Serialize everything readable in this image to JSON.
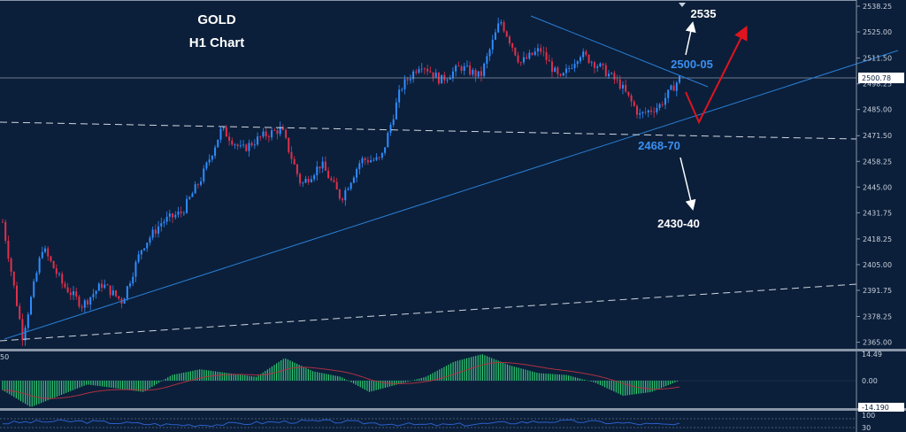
{
  "header": {
    "symbol": "GOLD",
    "timeframe": "H1 Chart"
  },
  "annotations": {
    "target_up": "2535",
    "resistance": "2500-05",
    "support": "2468-70",
    "target_down": "2430-40"
  },
  "colors": {
    "background": "#0b1f3a",
    "bull_candle": "#2f8cff",
    "bear_candle": "#e0304a",
    "trendline": "#2a7fd6",
    "scenario_arrow": "#e0141e",
    "histogram": "#2ecc71",
    "signal_line": "#b03040",
    "rsi_line": "#2b5fc9",
    "label_blue": "#3b8ff0"
  },
  "current_price": "2500.78",
  "chart_data": {
    "type": "candlestick",
    "title": "",
    "price_axis": {
      "ticks": [
        "2538.25",
        "2525.00",
        "2511.50",
        "2498.25",
        "2485.00",
        "2471.50",
        "2458.25",
        "2445.00",
        "2431.75",
        "2418.25",
        "2405.00",
        "2391.75",
        "2378.25",
        "2365.00"
      ],
      "range": [
        2360,
        2540
      ]
    },
    "price_path": [
      2427,
      2368,
      2414,
      2395,
      2384,
      2395,
      2386,
      2414,
      2427,
      2432,
      2450,
      2475,
      2464,
      2471,
      2475,
      2446,
      2457,
      2439,
      2459,
      2459,
      2496,
      2509,
      2500,
      2507,
      2502,
      2531,
      2509,
      2516,
      2500,
      2514,
      2507,
      2498,
      2482,
      2487,
      2501
    ],
    "oscillator": {
      "ticks": [
        "14.49",
        "0.00",
        "-14.190"
      ],
      "label": "50",
      "histogram_path": [
        -5,
        -14,
        -8,
        -2,
        -4,
        -6,
        3,
        6,
        4,
        2,
        12,
        5,
        2,
        -6,
        -2,
        2,
        10,
        14,
        8,
        4,
        3,
        -1,
        -8,
        -6,
        0
      ]
    },
    "rsi": {
      "levels": [
        "100",
        "70",
        "30",
        "0"
      ]
    }
  }
}
